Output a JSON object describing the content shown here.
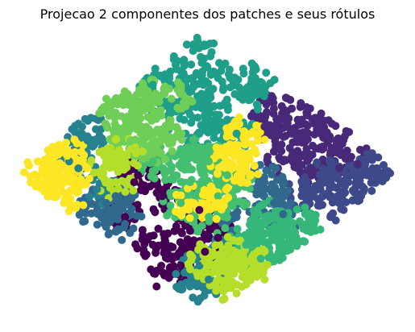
{
  "chart_data": {
    "type": "scatter",
    "title": "Projecao 2 componentes dos patches e seus rótulos",
    "xlabel": "",
    "ylabel": "",
    "axes_visible": false,
    "grid": false,
    "legend": "none",
    "xlim": [
      -1.0,
      1.0
    ],
    "ylim": [
      -1.0,
      1.0
    ],
    "colormap": "viridis",
    "marker": "circle",
    "series": [
      {
        "label_value": 0.0,
        "color": "#440154",
        "points": [
          [
            -0.4,
            -0.05
          ],
          [
            -0.3,
            -0.5
          ],
          [
            -0.2,
            -0.6
          ],
          [
            -0.1,
            -0.4
          ],
          [
            -0.05,
            -0.25
          ],
          [
            -0.38,
            0.0
          ],
          [
            -0.25,
            -0.15
          ],
          [
            0.05,
            -0.45
          ],
          [
            -0.15,
            -0.65
          ],
          [
            -0.45,
            -0.3
          ],
          [
            -0.28,
            -0.8
          ],
          [
            -0.02,
            -0.55
          ]
        ]
      },
      {
        "label_value": 0.1,
        "color": "#482878",
        "points": [
          [
            0.3,
            0.35
          ],
          [
            0.45,
            0.3
          ],
          [
            0.6,
            0.2
          ],
          [
            0.55,
            0.05
          ],
          [
            0.7,
            0.05
          ],
          [
            0.4,
            0.1
          ],
          [
            0.8,
            0.08
          ],
          [
            0.35,
            0.48
          ],
          [
            0.65,
            0.28
          ],
          [
            0.5,
            0.4
          ]
        ]
      },
      {
        "label_value": 0.2,
        "color": "#3e4989",
        "points": [
          [
            0.6,
            -0.1
          ],
          [
            0.75,
            -0.05
          ],
          [
            0.85,
            0.0
          ],
          [
            0.5,
            -0.15
          ],
          [
            0.7,
            -0.2
          ],
          [
            0.88,
            0.05
          ],
          [
            0.62,
            0.0
          ]
        ]
      },
      {
        "label_value": 0.3,
        "color": "#31688e",
        "points": [
          [
            -0.55,
            -0.2
          ],
          [
            -0.45,
            -0.35
          ],
          [
            -0.6,
            -0.25
          ],
          [
            -0.5,
            -0.15
          ],
          [
            0.3,
            -0.05
          ],
          [
            0.35,
            -0.2
          ],
          [
            0.15,
            -0.3
          ],
          [
            0.4,
            -0.28
          ]
        ]
      },
      {
        "label_value": 0.45,
        "color": "#26828e",
        "points": [
          [
            -0.7,
            0.05
          ],
          [
            -0.65,
            0.25
          ],
          [
            -0.6,
            -0.1
          ],
          [
            -0.75,
            0.1
          ],
          [
            -0.05,
            -0.65
          ],
          [
            0.0,
            -0.75
          ],
          [
            0.1,
            -0.55
          ],
          [
            -0.68,
            0.35
          ],
          [
            -0.1,
            -0.8
          ]
        ]
      },
      {
        "label_value": 0.55,
        "color": "#1f9e89",
        "points": [
          [
            -0.1,
            0.6
          ],
          [
            0.0,
            0.5
          ],
          [
            0.1,
            0.4
          ],
          [
            0.05,
            0.7
          ],
          [
            -0.05,
            0.3
          ],
          [
            0.2,
            0.55
          ],
          [
            0.15,
            0.3
          ],
          [
            -0.2,
            0.45
          ],
          [
            -0.15,
            0.75
          ],
          [
            -0.08,
            0.92
          ],
          [
            0.25,
            0.7
          ],
          [
            -0.3,
            0.65
          ]
        ]
      },
      {
        "label_value": 0.65,
        "color": "#35b779",
        "points": [
          [
            0.25,
            -0.45
          ],
          [
            0.35,
            -0.4
          ],
          [
            0.4,
            -0.55
          ],
          [
            0.3,
            -0.3
          ],
          [
            0.45,
            -0.45
          ],
          [
            0.28,
            -0.6
          ],
          [
            0.5,
            -0.35
          ],
          [
            0.2,
            -0.5
          ]
        ]
      },
      {
        "label_value": 0.72,
        "color": "#44bf70",
        "points": [
          [
            -0.2,
            0.05
          ],
          [
            -0.1,
            -0.05
          ],
          [
            0.0,
            0.1
          ],
          [
            0.05,
            -0.15
          ],
          [
            -0.15,
            -0.2
          ],
          [
            0.1,
            0.0
          ],
          [
            -0.05,
            0.15
          ],
          [
            0.15,
            -0.1
          ],
          [
            -0.3,
            0.1
          ],
          [
            0.0,
            -0.3
          ]
        ]
      },
      {
        "label_value": 0.78,
        "color": "#6ece58",
        "points": [
          [
            -0.4,
            0.5
          ],
          [
            -0.3,
            0.4
          ],
          [
            -0.25,
            0.3
          ],
          [
            -0.45,
            0.35
          ],
          [
            -0.5,
            0.45
          ],
          [
            -0.35,
            0.6
          ],
          [
            -0.2,
            0.55
          ],
          [
            -0.55,
            0.55
          ],
          [
            -0.28,
            0.2
          ],
          [
            -0.42,
            0.25
          ]
        ]
      },
      {
        "label_value": 0.88,
        "color": "#b5de2b",
        "points": [
          [
            -0.55,
            0.1
          ],
          [
            -0.5,
            -0.05
          ],
          [
            -0.45,
            0.15
          ],
          [
            0.1,
            -0.55
          ],
          [
            0.2,
            -0.7
          ],
          [
            0.05,
            -0.7
          ],
          [
            0.3,
            -0.75
          ],
          [
            0.15,
            -0.85
          ],
          [
            -0.02,
            -0.62
          ],
          [
            0.22,
            -0.62
          ]
        ]
      },
      {
        "label_value": 1.0,
        "color": "#fde725",
        "points": [
          [
            -0.9,
            0.0
          ],
          [
            -0.82,
            0.08
          ],
          [
            -0.82,
            -0.08
          ],
          [
            -0.75,
            0.0
          ],
          [
            -0.76,
            0.14
          ],
          [
            -0.76,
            -0.14
          ],
          [
            0.15,
            0.2
          ],
          [
            0.1,
            0.1
          ],
          [
            0.2,
            0.3
          ],
          [
            0.18,
            0.05
          ],
          [
            0.05,
            -0.2
          ],
          [
            -0.08,
            -0.2
          ]
        ]
      }
    ]
  }
}
